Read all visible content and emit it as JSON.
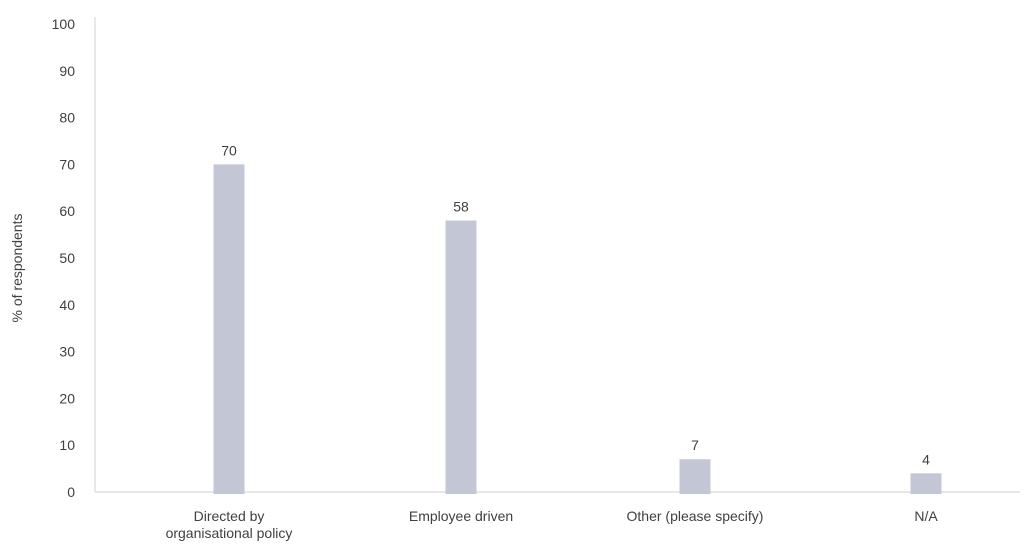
{
  "chart_data": {
    "type": "bar",
    "title": "",
    "xlabel": "",
    "ylabel": "% of respondents",
    "ylim": [
      0,
      100
    ],
    "yticks": [
      0,
      10,
      20,
      30,
      40,
      50,
      60,
      70,
      80,
      90,
      100
    ],
    "categories": [
      [
        "Directed by",
        "organisational policy"
      ],
      [
        "Employee driven"
      ],
      [
        "Other (please specify)"
      ],
      [
        "N/A"
      ]
    ],
    "values": [
      70,
      58,
      7,
      4
    ],
    "data_labels": [
      "70",
      "58",
      "7",
      "4"
    ],
    "bar_color": "#c3c6d4",
    "axis_color": "#d0d0d0",
    "text_color": "#404040",
    "grid": false,
    "legend": "none"
  }
}
